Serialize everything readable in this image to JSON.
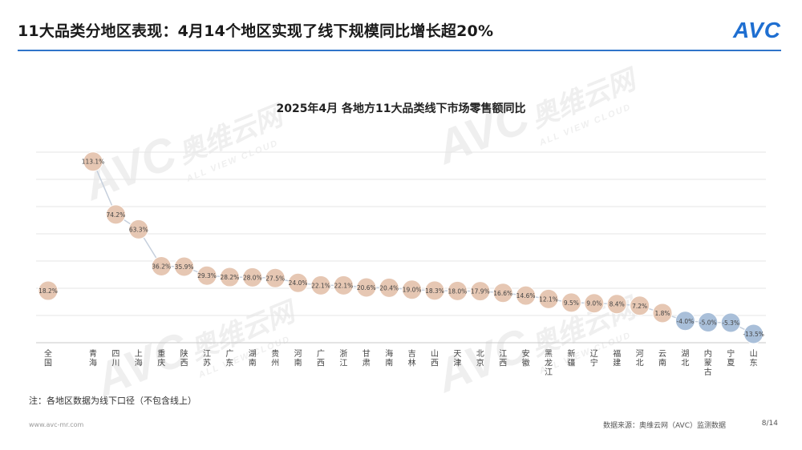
{
  "header": {
    "title": "11大品类分地区表现：4月14个地区实现了线下规模同比增长超20%",
    "logo": "AVC"
  },
  "note": "注：各地区数据为线下口径（不包含线上）",
  "footer": {
    "website": "www.avc-mr.com",
    "source": "数据来源：奥维云网（AVC）监测数据",
    "page": "8/14"
  },
  "watermark": {
    "brand": "AVC",
    "cn": "奥维云网",
    "sub": "ALL VIEW CLOUD"
  },
  "colors": {
    "accent": "#2f74c9",
    "positive_marker": "#e6c7b3",
    "negative_marker": "#a9bfd9",
    "line": "#c5cfdc"
  },
  "chart_data": {
    "type": "line",
    "title": "2025年4月 各地方11大品类线下市场零售额同比",
    "categories": [
      "全国",
      "青海",
      "四川",
      "上海",
      "重庆",
      "陕西",
      "江苏",
      "广东",
      "湖南",
      "贵州",
      "河南",
      "广西",
      "浙江",
      "甘肃",
      "海南",
      "吉林",
      "山西",
      "天津",
      "北京",
      "江西",
      "安徽",
      "黑龙江",
      "新疆",
      "辽宁",
      "福建",
      "河北",
      "云南",
      "湖北",
      "内蒙古",
      "宁夏",
      "山东"
    ],
    "values": [
      18.2,
      113.1,
      74.2,
      63.3,
      36.2,
      35.9,
      29.3,
      28.2,
      28.0,
      27.5,
      24.0,
      22.1,
      22.1,
      20.6,
      20.4,
      19.0,
      18.3,
      18.0,
      17.9,
      16.6,
      14.6,
      12.1,
      9.5,
      9.0,
      8.4,
      7.2,
      1.8,
      -4.0,
      -5.0,
      -5.3,
      -13.5
    ],
    "data_labels": [
      "18.2%",
      "113.1%",
      "74.2%",
      "63.3%",
      "36.2%",
      "35.9%",
      "29.3%",
      "28.2%",
      "28.0%",
      "27.5%",
      "24.0%",
      "22.1%",
      "22.1%",
      "20.6%",
      "20.4%",
      "19.0%",
      "18.3%",
      "18.0%",
      "17.9%",
      "16.6%",
      "14.6%",
      "12.1%",
      "9.5%",
      "9.0%",
      "8.4%",
      "7.2%",
      "1.8%",
      "-4.0%",
      "-5.0%",
      "-5.3%",
      "-13.5%"
    ],
    "ylim": [
      -20,
      120
    ],
    "grid": true,
    "legend": "none"
  }
}
